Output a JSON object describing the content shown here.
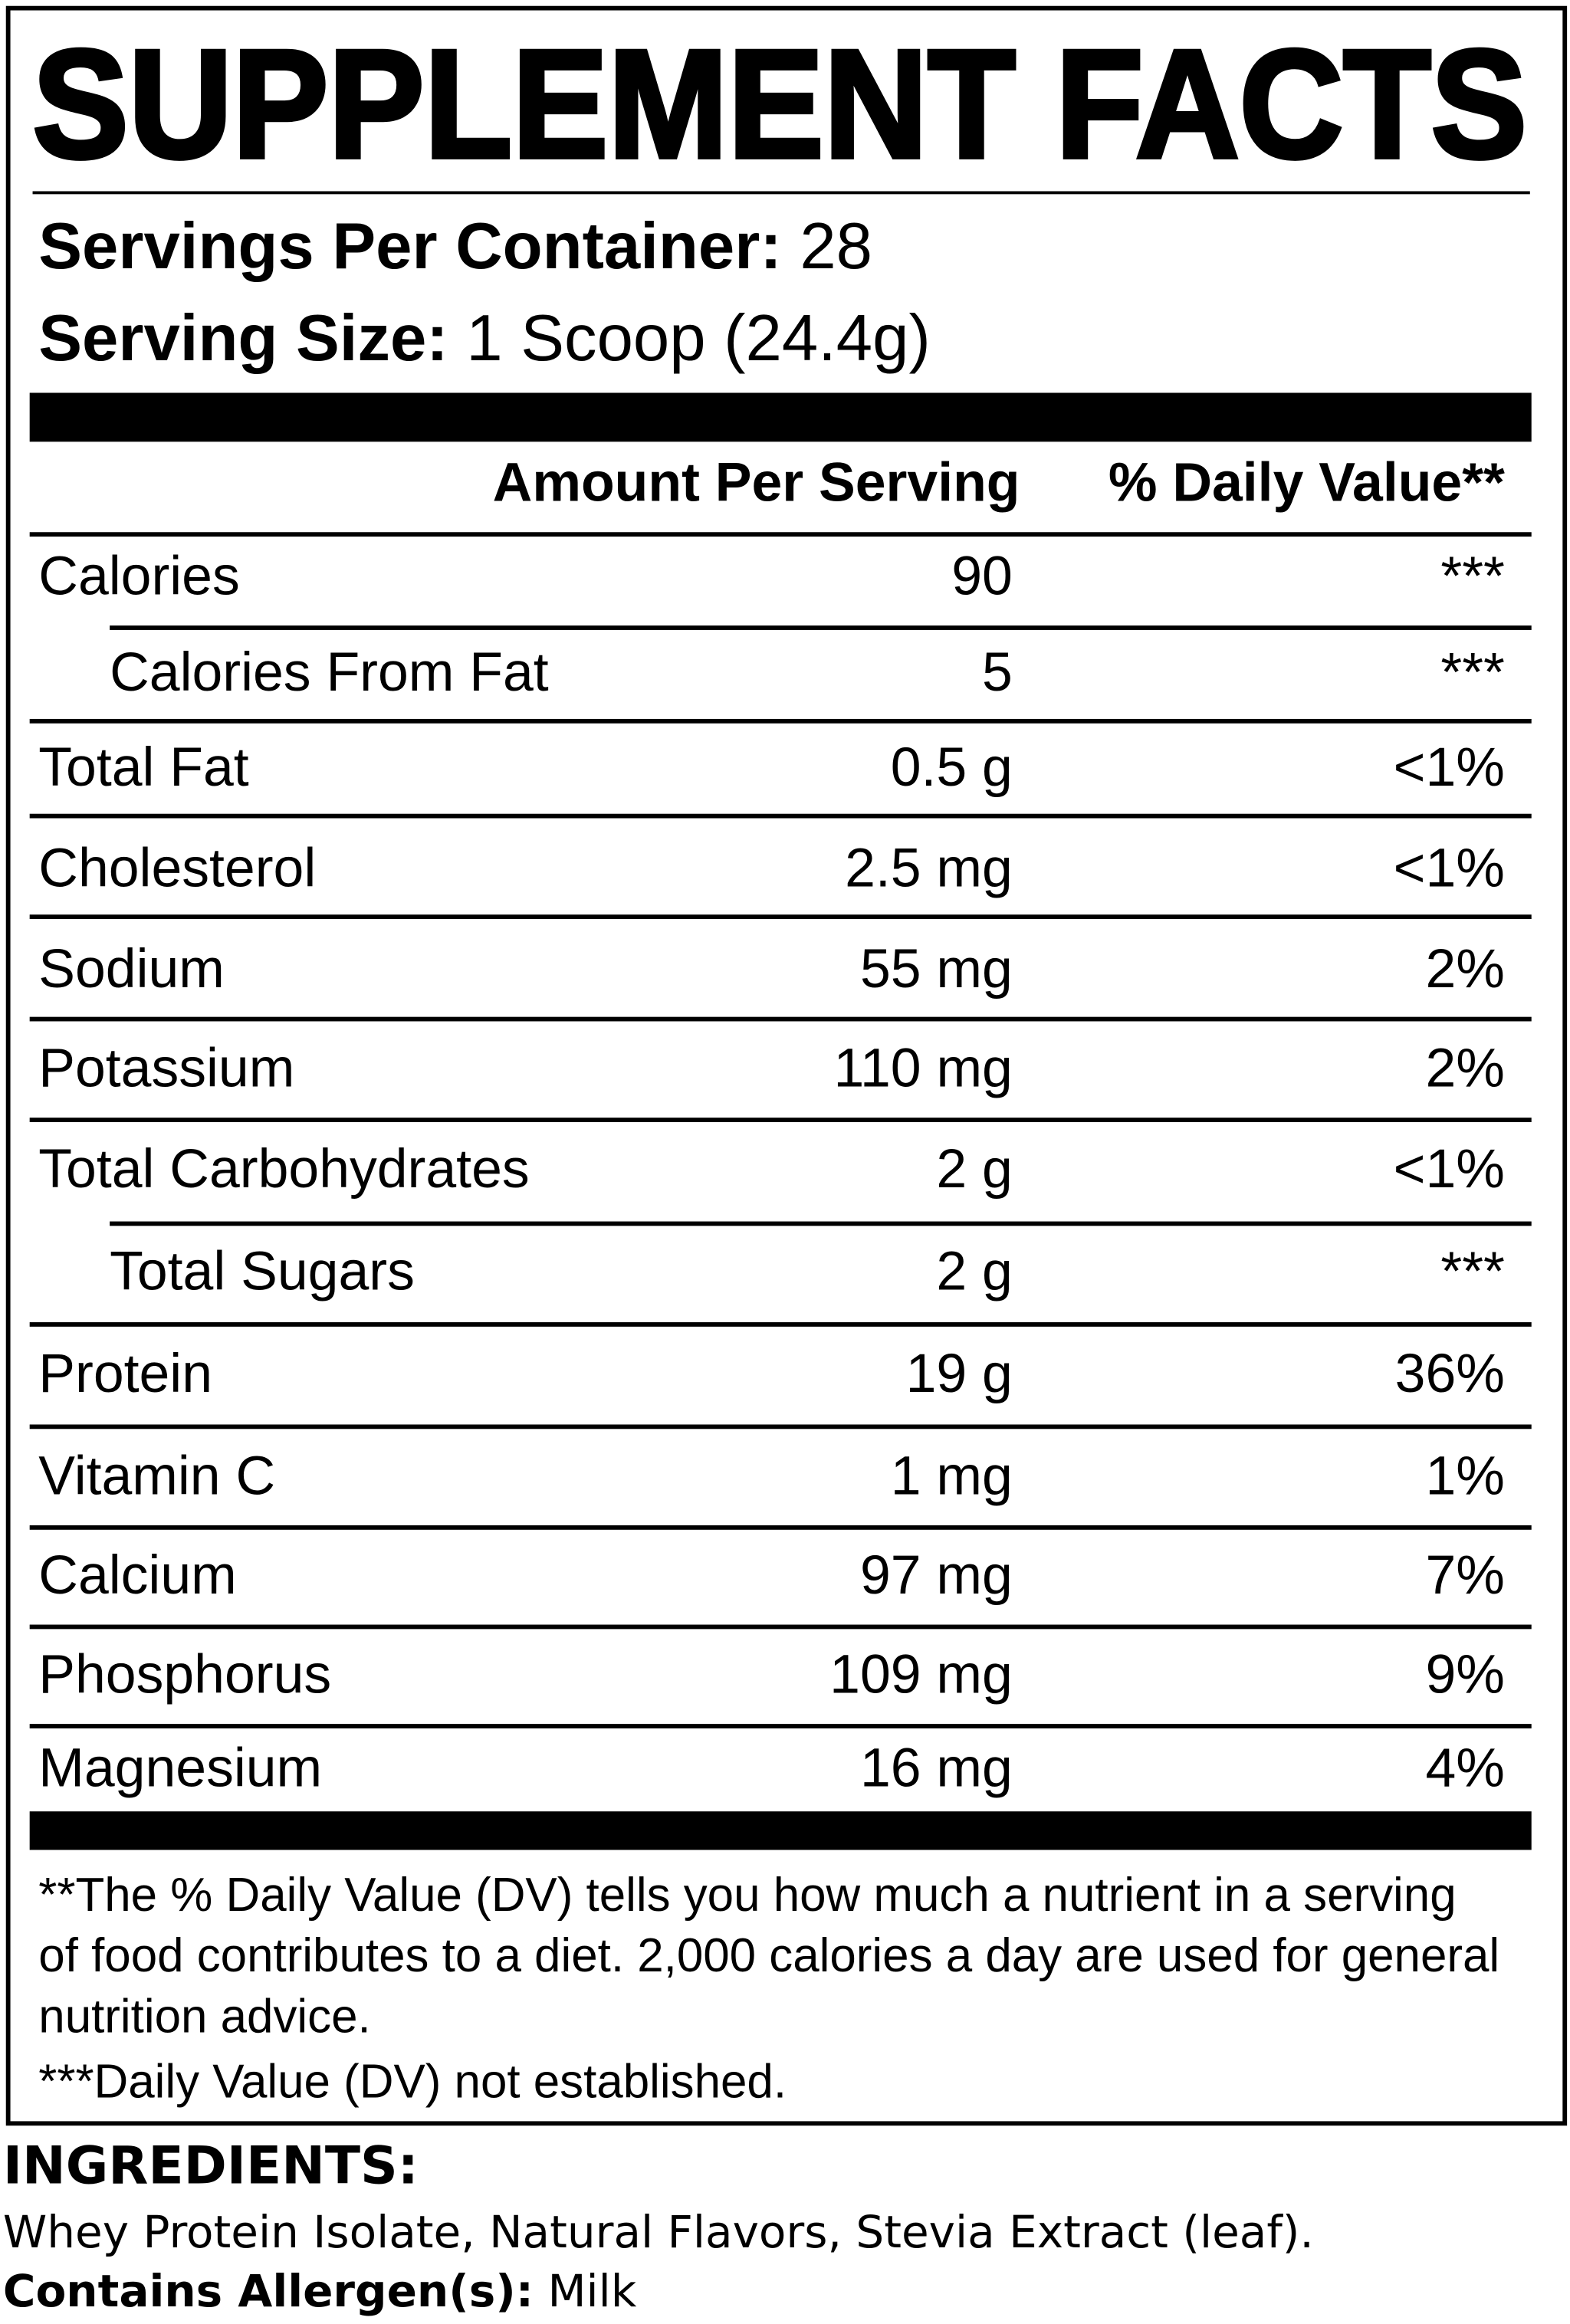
{
  "title": "SUPPLEMENT FACTS",
  "servings": {
    "label": "Servings Per Container:",
    "value": "28"
  },
  "serving_size": {
    "label": "Serving Size:",
    "value": "1 Scoop (24.4g)"
  },
  "header": {
    "amount": "Amount Per Serving",
    "dv": "% Daily Value**"
  },
  "rows": [
    [
      "Calories",
      "90",
      "***"
    ],
    [
      "Calories From Fat",
      "5",
      "***"
    ],
    [
      "Total Fat",
      "0.5 g",
      "<1%"
    ],
    [
      "Cholesterol",
      "2.5 mg",
      "<1%"
    ],
    [
      "Sodium",
      "55 mg",
      "2%"
    ],
    [
      "Potassium",
      "110 mg",
      "2%"
    ],
    [
      "Total Carbohydrates",
      "2 g",
      "<1%"
    ],
    [
      "Total Sugars",
      "2 g",
      "***"
    ],
    [
      "Protein",
      "19 g",
      "36%"
    ],
    [
      "Vitamin C",
      "1 mg",
      "1%"
    ],
    [
      "Calcium",
      "97 mg",
      "7%"
    ],
    [
      "Phosphorus",
      "109 mg",
      "9%"
    ],
    [
      "Magnesium",
      "16 mg",
      "4%"
    ]
  ],
  "footnotes": [
    "**The % Daily Value (DV) tells you how much a nutrient in a serving of food contributes to a diet. 2,000 calories a day are used for general nutrition advice.",
    "***Daily Value (DV) not established."
  ],
  "ingredients": {
    "label": "INGREDIENTS:",
    "text": "Whey Protein Isolate, Natural Flavors, Stevia Extract (leaf)."
  },
  "allergen": {
    "label": "Contains Allergen(s):",
    "value": "Milk"
  }
}
